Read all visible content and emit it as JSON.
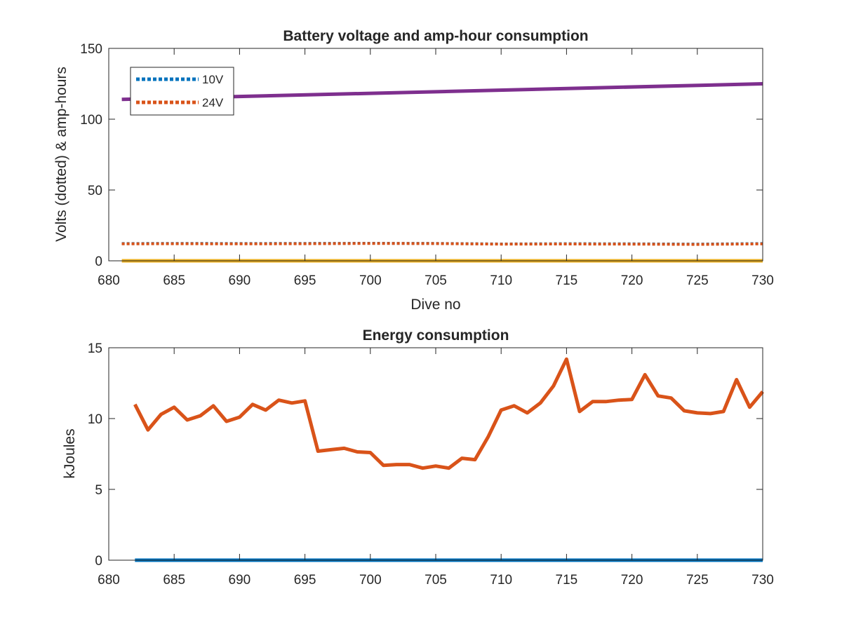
{
  "chart_data": [
    {
      "type": "line",
      "title": "Battery voltage and amp-hour consumption",
      "xlabel": "Dive no",
      "ylabel": "Volts (dotted) & amp-hours",
      "xlim": [
        680,
        730
      ],
      "ylim": [
        0,
        150
      ],
      "xticks": [
        680,
        685,
        690,
        695,
        700,
        705,
        710,
        715,
        720,
        725,
        730
      ],
      "yticks": [
        0,
        50,
        100,
        150
      ],
      "grid": false,
      "legend": {
        "placement": "top-left",
        "entries": [
          "10V",
          "24V"
        ]
      },
      "series": [
        {
          "name": "10V",
          "style": "dotted",
          "color": "#0072BD",
          "x": [
            681,
            685,
            690,
            695,
            700,
            705,
            710,
            715,
            720,
            725,
            730
          ],
          "y": [
            12.2,
            12.3,
            12.2,
            12.3,
            12.4,
            12.3,
            11.9,
            12.1,
            12.0,
            11.8,
            12.2
          ]
        },
        {
          "name": "24V",
          "style": "dotted",
          "color": "#D95319",
          "x": [
            681,
            685,
            690,
            695,
            700,
            705,
            710,
            715,
            720,
            725,
            730
          ],
          "y": [
            12.0,
            12.1,
            12.0,
            12.1,
            12.3,
            12.2,
            11.8,
            11.9,
            11.8,
            11.6,
            12.0
          ]
        },
        {
          "style": "solid",
          "color": "#7E2F8E",
          "x": [
            681,
            730
          ],
          "y": [
            114,
            125
          ]
        },
        {
          "style": "solid",
          "color": "#EDB120",
          "x": [
            681,
            730
          ],
          "y": [
            0,
            0
          ]
        }
      ]
    },
    {
      "type": "line",
      "title": "Energy consumption",
      "xlabel": "",
      "ylabel": "kJoules",
      "xlim": [
        680,
        730
      ],
      "ylim": [
        0,
        15
      ],
      "xticks": [
        680,
        685,
        690,
        695,
        700,
        705,
        710,
        715,
        720,
        725,
        730
      ],
      "yticks": [
        0,
        5,
        10,
        15
      ],
      "grid": false,
      "series": [
        {
          "style": "solid",
          "color": "#0072BD",
          "x": [
            682,
            730
          ],
          "y": [
            0,
            0
          ]
        },
        {
          "style": "solid",
          "color": "#D95319",
          "x": [
            682,
            683,
            684,
            685,
            686,
            687,
            688,
            689,
            690,
            691,
            692,
            693,
            694,
            695,
            696,
            697,
            698,
            699,
            700,
            701,
            702,
            703,
            704,
            705,
            706,
            707,
            708,
            709,
            710,
            711,
            712,
            713,
            714,
            715,
            716,
            717,
            718,
            719,
            720,
            721,
            722,
            723,
            724,
            725,
            726,
            727,
            728,
            729,
            730
          ],
          "y": [
            11.0,
            9.2,
            10.3,
            10.8,
            9.9,
            10.2,
            10.9,
            9.8,
            10.1,
            11.0,
            10.6,
            11.3,
            11.1,
            11.25,
            7.7,
            7.8,
            7.9,
            7.65,
            7.6,
            6.7,
            6.75,
            6.75,
            6.5,
            6.65,
            6.5,
            7.2,
            7.1,
            8.7,
            10.6,
            10.9,
            10.4,
            11.1,
            12.3,
            14.2,
            10.5,
            11.2,
            11.2,
            11.3,
            11.35,
            13.1,
            11.6,
            11.45,
            10.55,
            10.4,
            10.35,
            10.5,
            12.75,
            10.8,
            11.9
          ]
        }
      ]
    }
  ]
}
